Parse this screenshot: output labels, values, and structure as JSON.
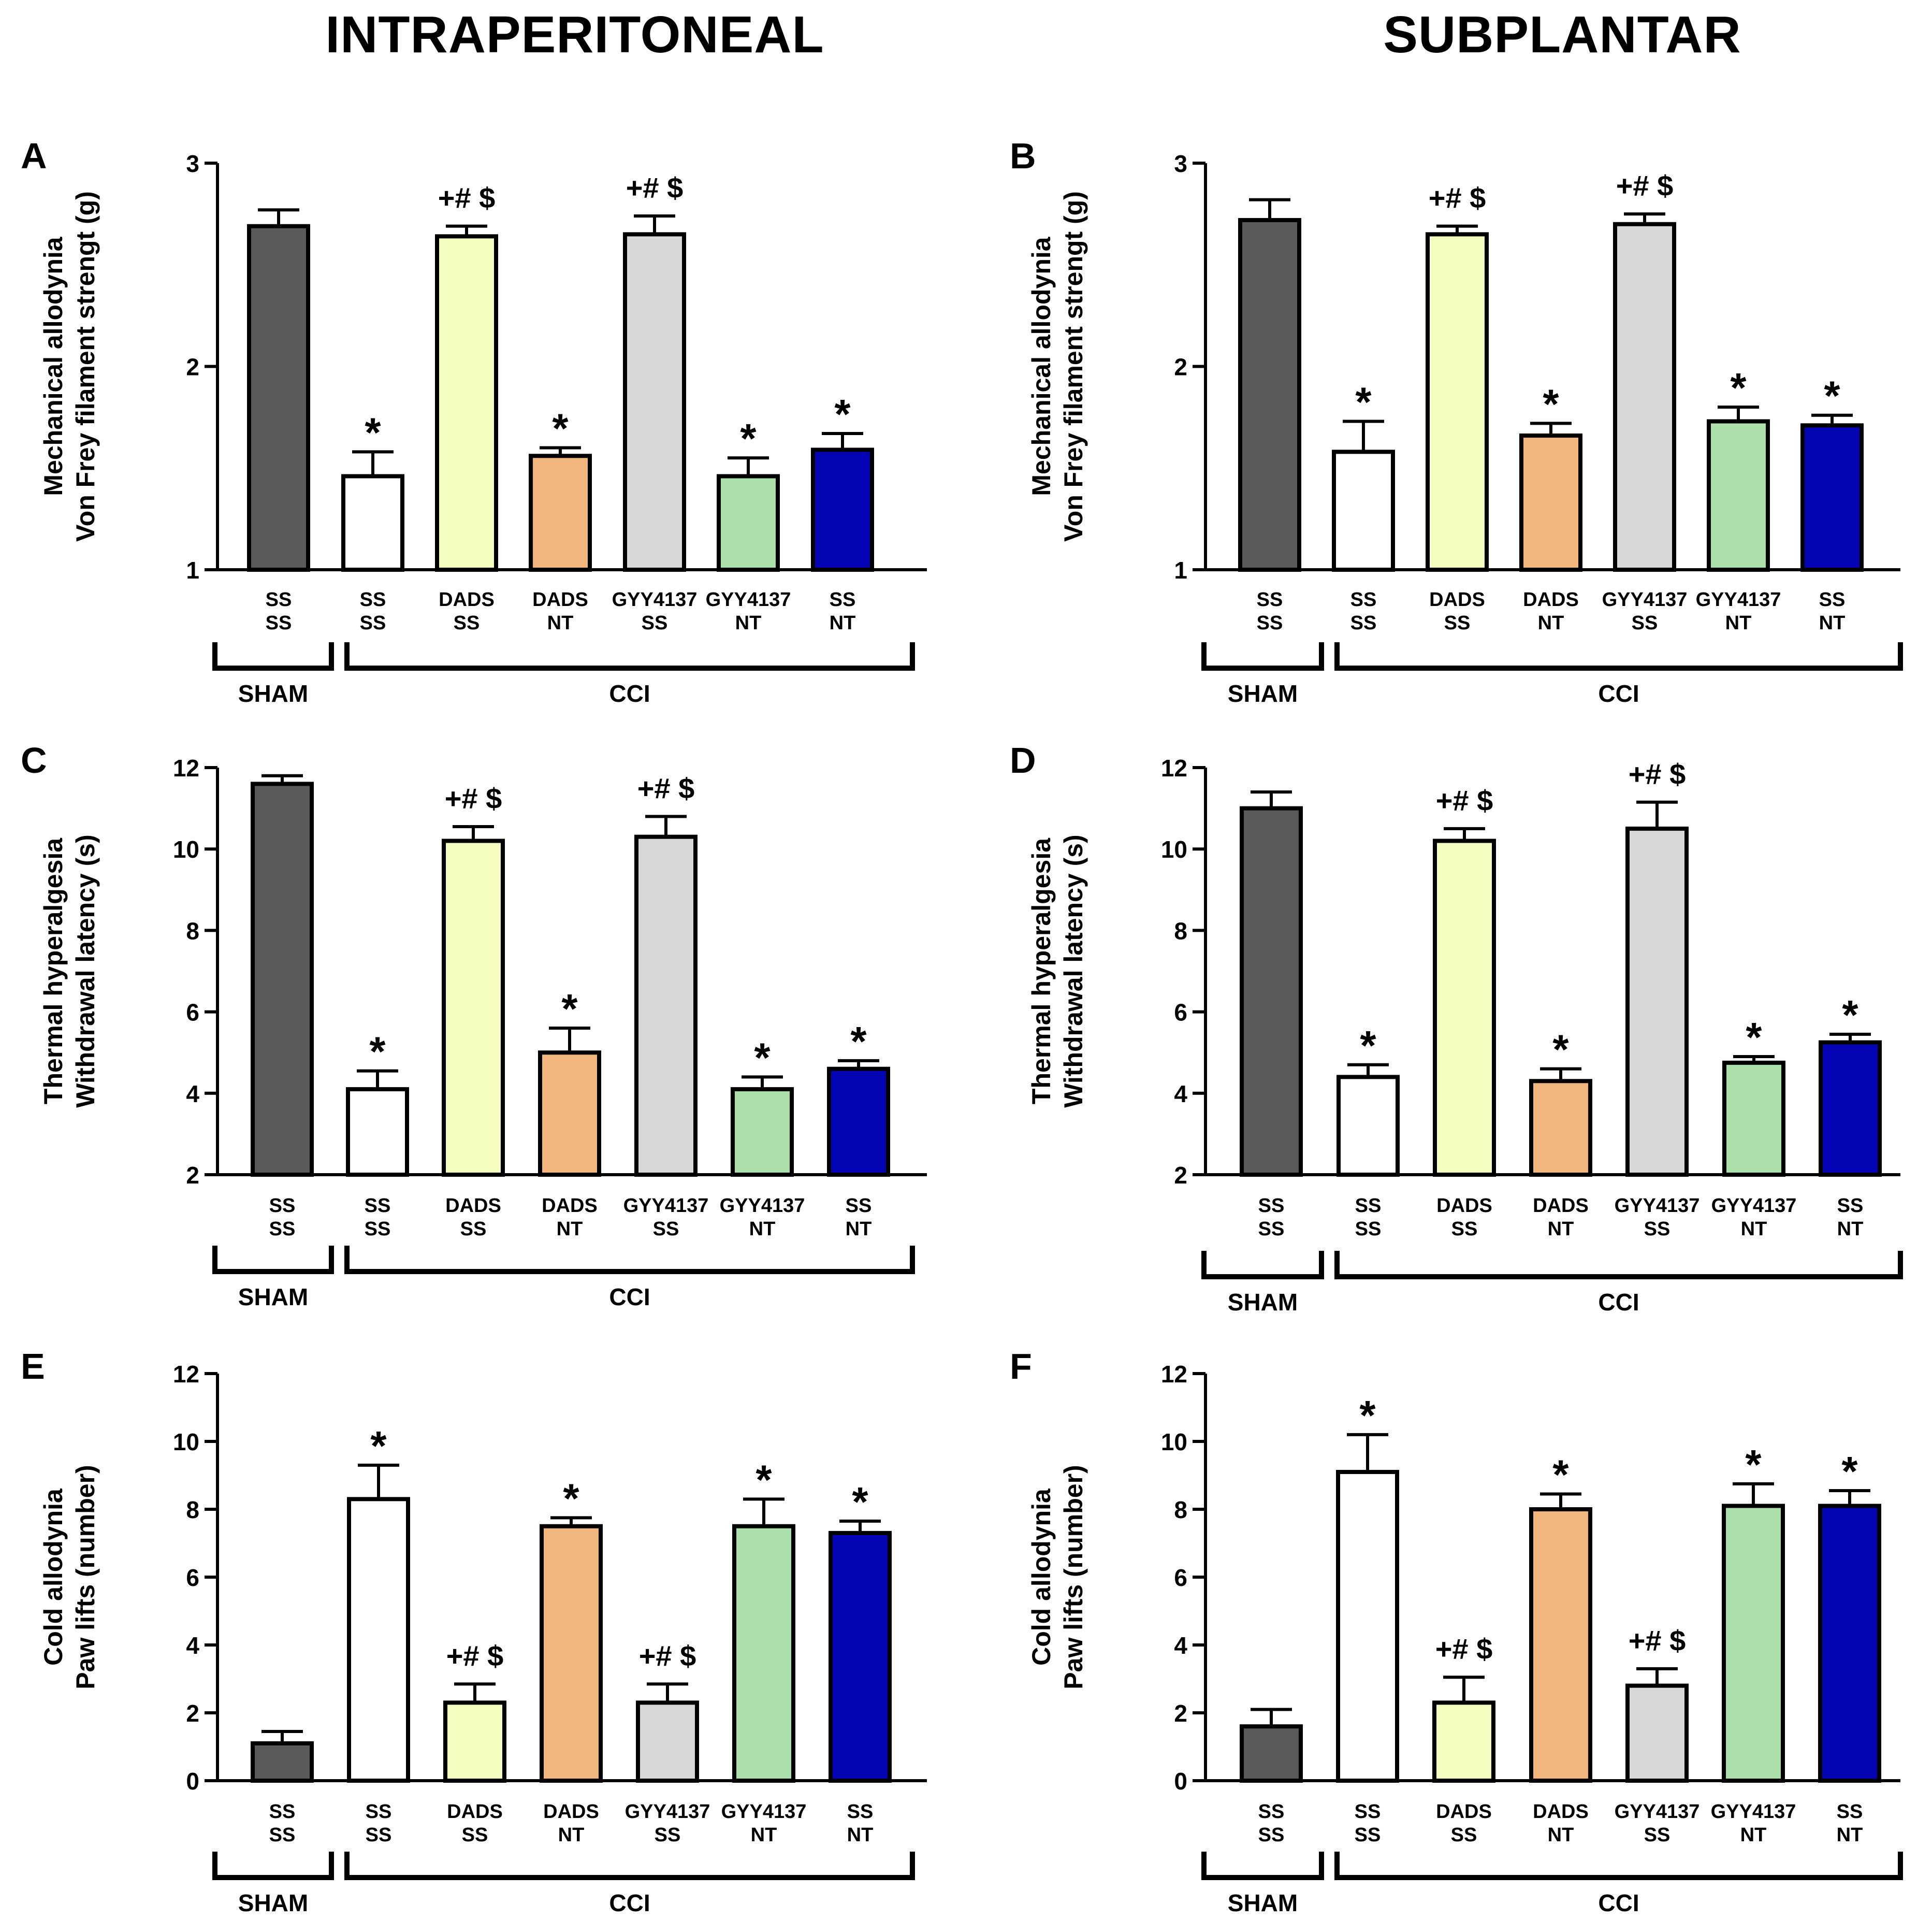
{
  "titles": {
    "left": "INTRAPERITONEAL",
    "right": "SUBPLANTAR"
  },
  "groups": {
    "sham": "SHAM",
    "cci": "CCI"
  },
  "bar_colors": [
    "#5a5a5a",
    "#ffffff",
    "#f5fcc0",
    "#f0b67d",
    "#d7d7d7",
    "#ace0ab",
    "#0404b4"
  ],
  "annotations": {
    "star": "*",
    "sig": "+# $"
  },
  "chart_data": [
    {
      "panel": "A",
      "type": "bar",
      "title": "",
      "ylabel": [
        "Mechanical allodynia",
        "Von Frey filament strengt (g)"
      ],
      "ylim": [
        1,
        3
      ],
      "yticks": [
        1,
        2,
        3
      ],
      "categories": [
        [
          "SS",
          "SS"
        ],
        [
          "SS",
          "SS"
        ],
        [
          "DADS",
          "SS"
        ],
        [
          "DADS",
          "NT"
        ],
        [
          "GYY4137",
          "SS"
        ],
        [
          "GYY4137",
          "NT"
        ],
        [
          "SS",
          "NT"
        ]
      ],
      "values": [
        2.69,
        1.46,
        2.64,
        1.56,
        2.65,
        1.46,
        1.59
      ],
      "errors": [
        0.08,
        0.12,
        0.05,
        0.04,
        0.09,
        0.09,
        0.08
      ],
      "labels": [
        "",
        "*",
        "+# $",
        "*",
        "+# $",
        "*",
        "*"
      ]
    },
    {
      "panel": "B",
      "type": "bar",
      "title": "",
      "ylabel": [
        "Mechanical allodynia",
        "Von Frey filament strengt (g)"
      ],
      "ylim": [
        1,
        3
      ],
      "yticks": [
        1,
        2,
        3
      ],
      "categories": [
        [
          "SS",
          "SS"
        ],
        [
          "SS",
          "SS"
        ],
        [
          "DADS",
          "SS"
        ],
        [
          "DADS",
          "NT"
        ],
        [
          "GYY4137",
          "SS"
        ],
        [
          "GYY4137",
          "NT"
        ],
        [
          "SS",
          "NT"
        ]
      ],
      "values": [
        2.72,
        1.58,
        2.65,
        1.66,
        2.7,
        1.73,
        1.71
      ],
      "errors": [
        0.1,
        0.15,
        0.04,
        0.06,
        0.05,
        0.07,
        0.05
      ],
      "labels": [
        "",
        "*",
        "+# $",
        "*",
        "+# $",
        "*",
        "*"
      ]
    },
    {
      "panel": "C",
      "type": "bar",
      "title": "",
      "ylabel": [
        "Thermal hyperalgesia",
        "Withdrawal latency (s)"
      ],
      "ylim": [
        2,
        12
      ],
      "yticks": [
        2,
        4,
        6,
        8,
        10,
        12
      ],
      "categories": [
        [
          "SS",
          "SS"
        ],
        [
          "SS",
          "SS"
        ],
        [
          "DADS",
          "SS"
        ],
        [
          "DADS",
          "NT"
        ],
        [
          "GYY4137",
          "SS"
        ],
        [
          "GYY4137",
          "NT"
        ],
        [
          "SS",
          "NT"
        ]
      ],
      "values": [
        11.6,
        4.1,
        10.2,
        5.0,
        10.3,
        4.1,
        4.6
      ],
      "errors": [
        0.2,
        0.45,
        0.35,
        0.6,
        0.5,
        0.3,
        0.2
      ],
      "labels": [
        "",
        "*",
        "+# $",
        "*",
        "+# $",
        "*",
        "*"
      ]
    },
    {
      "panel": "D",
      "type": "bar",
      "title": "",
      "ylabel": [
        "Thermal hyperalgesia",
        "Withdrawal latency (s)"
      ],
      "ylim": [
        2,
        12
      ],
      "yticks": [
        2,
        4,
        6,
        8,
        10,
        12
      ],
      "categories": [
        [
          "SS",
          "SS"
        ],
        [
          "SS",
          "SS"
        ],
        [
          "DADS",
          "SS"
        ],
        [
          "DADS",
          "NT"
        ],
        [
          "GYY4137",
          "SS"
        ],
        [
          "GYY4137",
          "NT"
        ],
        [
          "SS",
          "NT"
        ]
      ],
      "values": [
        11.0,
        4.4,
        10.2,
        4.3,
        10.5,
        4.75,
        5.25
      ],
      "errors": [
        0.4,
        0.3,
        0.3,
        0.3,
        0.65,
        0.15,
        0.2
      ],
      "labels": [
        "",
        "*",
        "+# $",
        "*",
        "+# $",
        "*",
        "*"
      ]
    },
    {
      "panel": "E",
      "type": "bar",
      "title": "",
      "ylabel": [
        "Cold allodynia",
        "Paw lifts (number)"
      ],
      "ylim": [
        0,
        12
      ],
      "yticks": [
        0,
        2,
        4,
        6,
        8,
        10,
        12
      ],
      "categories": [
        [
          "SS",
          "SS"
        ],
        [
          "SS",
          "SS"
        ],
        [
          "DADS",
          "SS"
        ],
        [
          "DADS",
          "NT"
        ],
        [
          "GYY4137",
          "SS"
        ],
        [
          "GYY4137",
          "NT"
        ],
        [
          "SS",
          "NT"
        ]
      ],
      "values": [
        1.1,
        8.3,
        2.3,
        7.5,
        2.3,
        7.5,
        7.3
      ],
      "errors": [
        0.35,
        1.0,
        0.55,
        0.25,
        0.55,
        0.8,
        0.35
      ],
      "labels": [
        "",
        "*",
        "+# $",
        "*",
        "+# $",
        "*",
        "*"
      ]
    },
    {
      "panel": "F",
      "type": "bar",
      "title": "",
      "ylabel": [
        "Cold allodynia",
        "Paw lifts (number)"
      ],
      "ylim": [
        0,
        12
      ],
      "yticks": [
        0,
        2,
        4,
        6,
        8,
        10,
        12
      ],
      "categories": [
        [
          "SS",
          "SS"
        ],
        [
          "SS",
          "SS"
        ],
        [
          "DADS",
          "SS"
        ],
        [
          "DADS",
          "NT"
        ],
        [
          "GYY4137",
          "SS"
        ],
        [
          "GYY4137",
          "NT"
        ],
        [
          "SS",
          "NT"
        ]
      ],
      "values": [
        1.6,
        9.1,
        2.3,
        8.0,
        2.8,
        8.1,
        8.1
      ],
      "errors": [
        0.5,
        1.1,
        0.75,
        0.45,
        0.5,
        0.65,
        0.45
      ],
      "labels": [
        "",
        "*",
        "+# $",
        "*",
        "+# $",
        "*",
        "*"
      ]
    }
  ]
}
